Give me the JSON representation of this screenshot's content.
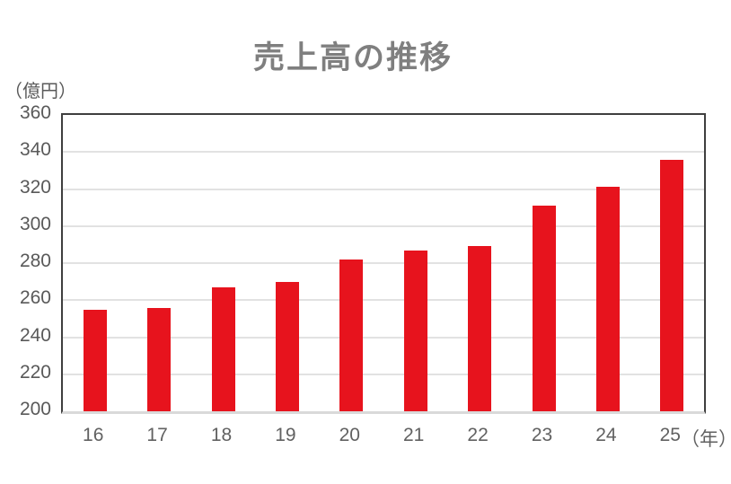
{
  "chart_data": {
    "type": "bar",
    "title": "売上高の推移",
    "categories": [
      "16",
      "17",
      "18",
      "19",
      "20",
      "21",
      "22",
      "23",
      "24",
      "25"
    ],
    "values": [
      255,
      256,
      267,
      270,
      282,
      287,
      289,
      311,
      321,
      336
    ],
    "xlabel": "（年）",
    "ylabel": "（億円）",
    "ylim": [
      200,
      360
    ],
    "ytick_step": 20,
    "ytick_labels": [
      "360",
      "340",
      "320",
      "300",
      "280",
      "260",
      "240",
      "220",
      "200"
    ],
    "grid": true,
    "legend": false,
    "bar_color": "#e7131d",
    "gridline_color": "#e2e2e2",
    "plot_border_color": "#3f3f3f",
    "axis_line_color": "#d9d9d9",
    "title_color": "#7f7f7f",
    "tick_text_color": "#595959"
  }
}
